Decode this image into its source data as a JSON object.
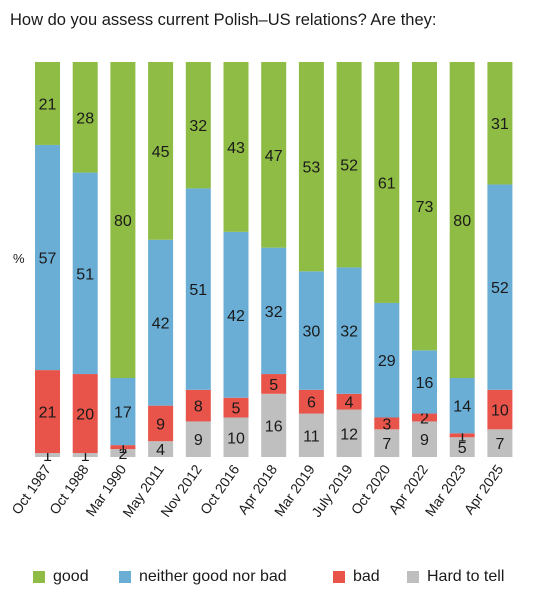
{
  "title": "How do you assess current Polish–US relations? Are they:",
  "chart_data": {
    "type": "bar",
    "stacked": true,
    "ylabel": "%",
    "ylim": [
      0,
      100
    ],
    "categories": [
      "Oct 1987",
      "Oct 1988",
      "Mar 1990",
      "May 2011",
      "Nov 2012",
      "Oct 2016",
      "Apr 2018",
      "Mar 2019",
      "July 2019",
      "Oct 2020",
      "Apr 2022",
      "Mar 2023",
      "Apr 2025"
    ],
    "series": [
      {
        "name": "Hard to tell",
        "color": "#bfbfbf",
        "values": [
          1,
          1,
          2,
          4,
          9,
          10,
          16,
          11,
          12,
          7,
          9,
          5,
          7
        ],
        "labels": [
          "1",
          "1",
          "2",
          "4",
          "9",
          "10",
          "16",
          "11",
          "12",
          "7",
          "9",
          "5",
          "7"
        ]
      },
      {
        "name": "bad",
        "color": "#e8534a",
        "values": [
          21,
          20,
          1,
          9,
          8,
          5,
          5,
          6,
          4,
          3,
          2,
          1,
          10
        ],
        "labels": [
          "21",
          "20",
          "1",
          "9",
          "8",
          "5",
          "5",
          "6",
          "4",
          "3",
          "2",
          "1",
          "10"
        ]
      },
      {
        "name": "neither good nor bad",
        "color": "#6aaed6",
        "values": [
          57,
          51,
          17,
          42,
          51,
          42,
          32,
          30,
          32,
          29,
          16,
          14,
          52
        ],
        "labels": [
          "57",
          "51",
          "17",
          "42",
          "51",
          "42",
          "32",
          "30",
          "32",
          "29",
          "16",
          "14",
          "52"
        ]
      },
      {
        "name": "good",
        "color": "#8fbc45",
        "values": [
          21,
          28,
          80,
          45,
          32,
          43,
          47,
          53,
          52,
          61,
          73,
          80,
          31
        ],
        "labels": [
          "21",
          "28",
          "80",
          "45",
          "32",
          "43",
          "47",
          "53",
          "52",
          "61",
          "73",
          "80",
          "31"
        ]
      }
    ],
    "legend": [
      "good",
      "neither good nor bad",
      "bad",
      "Hard to tell"
    ],
    "legend_position": "bottom"
  }
}
